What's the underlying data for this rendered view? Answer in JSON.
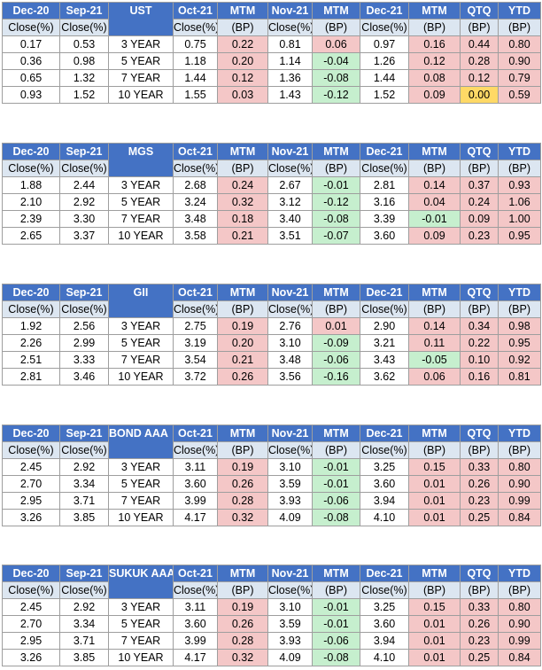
{
  "header_top": [
    "Dec-20",
    "Sep-21",
    "",
    "Oct-21",
    "MTM",
    "Nov-21",
    "MTM",
    "Dec-21",
    "MTM",
    "QTQ",
    "YTD"
  ],
  "header_sub": [
    "Close(%)",
    "Close(%)",
    "",
    "Close(%)",
    "(BP)",
    "Close(%)",
    "(BP)",
    "Close(%)",
    "(BP)",
    "(BP)",
    "(BP)"
  ],
  "colors": {
    "header": "#4472c4",
    "subheader": "#dce6f1",
    "increase": "#f4c7c7",
    "decrease": "#c6efce",
    "unchanged": "#ffd966"
  },
  "tables": [
    {
      "title": "UST",
      "rows": [
        [
          "0.17",
          "0.53",
          "3 YEAR",
          "0.75",
          "0.22",
          "0.81",
          "0.06",
          "0.97",
          "0.16",
          "0.44",
          "0.80"
        ],
        [
          "0.36",
          "0.98",
          "5 YEAR",
          "1.18",
          "0.20",
          "1.14",
          "-0.04",
          "1.26",
          "0.12",
          "0.28",
          "0.90"
        ],
        [
          "0.65",
          "1.32",
          "7 YEAR",
          "1.44",
          "0.12",
          "1.36",
          "-0.08",
          "1.44",
          "0.08",
          "0.12",
          "0.79"
        ],
        [
          "0.93",
          "1.52",
          "10 YEAR",
          "1.55",
          "0.03",
          "1.43",
          "-0.12",
          "1.52",
          "0.09",
          "0.00",
          "0.59"
        ]
      ]
    },
    {
      "title": "MGS",
      "rows": [
        [
          "1.88",
          "2.44",
          "3 YEAR",
          "2.68",
          "0.24",
          "2.67",
          "-0.01",
          "2.81",
          "0.14",
          "0.37",
          "0.93"
        ],
        [
          "2.10",
          "2.92",
          "5 YEAR",
          "3.24",
          "0.32",
          "3.12",
          "-0.12",
          "3.16",
          "0.04",
          "0.24",
          "1.06"
        ],
        [
          "2.39",
          "3.30",
          "7 YEAR",
          "3.48",
          "0.18",
          "3.40",
          "-0.08",
          "3.39",
          "-0.01",
          "0.09",
          "1.00"
        ],
        [
          "2.65",
          "3.37",
          "10 YEAR",
          "3.58",
          "0.21",
          "3.51",
          "-0.07",
          "3.60",
          "0.09",
          "0.23",
          "0.95"
        ]
      ]
    },
    {
      "title": "GII",
      "rows": [
        [
          "1.92",
          "2.56",
          "3 YEAR",
          "2.75",
          "0.19",
          "2.76",
          "0.01",
          "2.90",
          "0.14",
          "0.34",
          "0.98"
        ],
        [
          "2.26",
          "2.99",
          "5 YEAR",
          "3.19",
          "0.20",
          "3.10",
          "-0.09",
          "3.21",
          "0.11",
          "0.22",
          "0.95"
        ],
        [
          "2.51",
          "3.33",
          "7 YEAR",
          "3.54",
          "0.21",
          "3.48",
          "-0.06",
          "3.43",
          "-0.05",
          "0.10",
          "0.92"
        ],
        [
          "2.81",
          "3.46",
          "10 YEAR",
          "3.72",
          "0.26",
          "3.56",
          "-0.16",
          "3.62",
          "0.06",
          "0.16",
          "0.81"
        ]
      ]
    },
    {
      "title": "BOND AAA",
      "rows": [
        [
          "2.45",
          "2.92",
          "3 YEAR",
          "3.11",
          "0.19",
          "3.10",
          "-0.01",
          "3.25",
          "0.15",
          "0.33",
          "0.80"
        ],
        [
          "2.70",
          "3.34",
          "5 YEAR",
          "3.60",
          "0.26",
          "3.59",
          "-0.01",
          "3.60",
          "0.01",
          "0.26",
          "0.90"
        ],
        [
          "2.95",
          "3.71",
          "7 YEAR",
          "3.99",
          "0.28",
          "3.93",
          "-0.06",
          "3.94",
          "0.01",
          "0.23",
          "0.99"
        ],
        [
          "3.26",
          "3.85",
          "10 YEAR",
          "4.17",
          "0.32",
          "4.09",
          "-0.08",
          "4.10",
          "0.01",
          "0.25",
          "0.84"
        ]
      ]
    },
    {
      "title": "SUKUK AAA",
      "rows": [
        [
          "2.45",
          "2.92",
          "3 YEAR",
          "3.11",
          "0.19",
          "3.10",
          "-0.01",
          "3.25",
          "0.15",
          "0.33",
          "0.80"
        ],
        [
          "2.70",
          "3.34",
          "5 YEAR",
          "3.60",
          "0.26",
          "3.59",
          "-0.01",
          "3.60",
          "0.01",
          "0.26",
          "0.90"
        ],
        [
          "2.95",
          "3.71",
          "7 YEAR",
          "3.99",
          "0.28",
          "3.93",
          "-0.06",
          "3.94",
          "0.01",
          "0.23",
          "0.99"
        ],
        [
          "3.26",
          "3.85",
          "10 YEAR",
          "4.17",
          "0.32",
          "4.09",
          "-0.08",
          "4.10",
          "0.01",
          "0.25",
          "0.84"
        ]
      ]
    }
  ]
}
